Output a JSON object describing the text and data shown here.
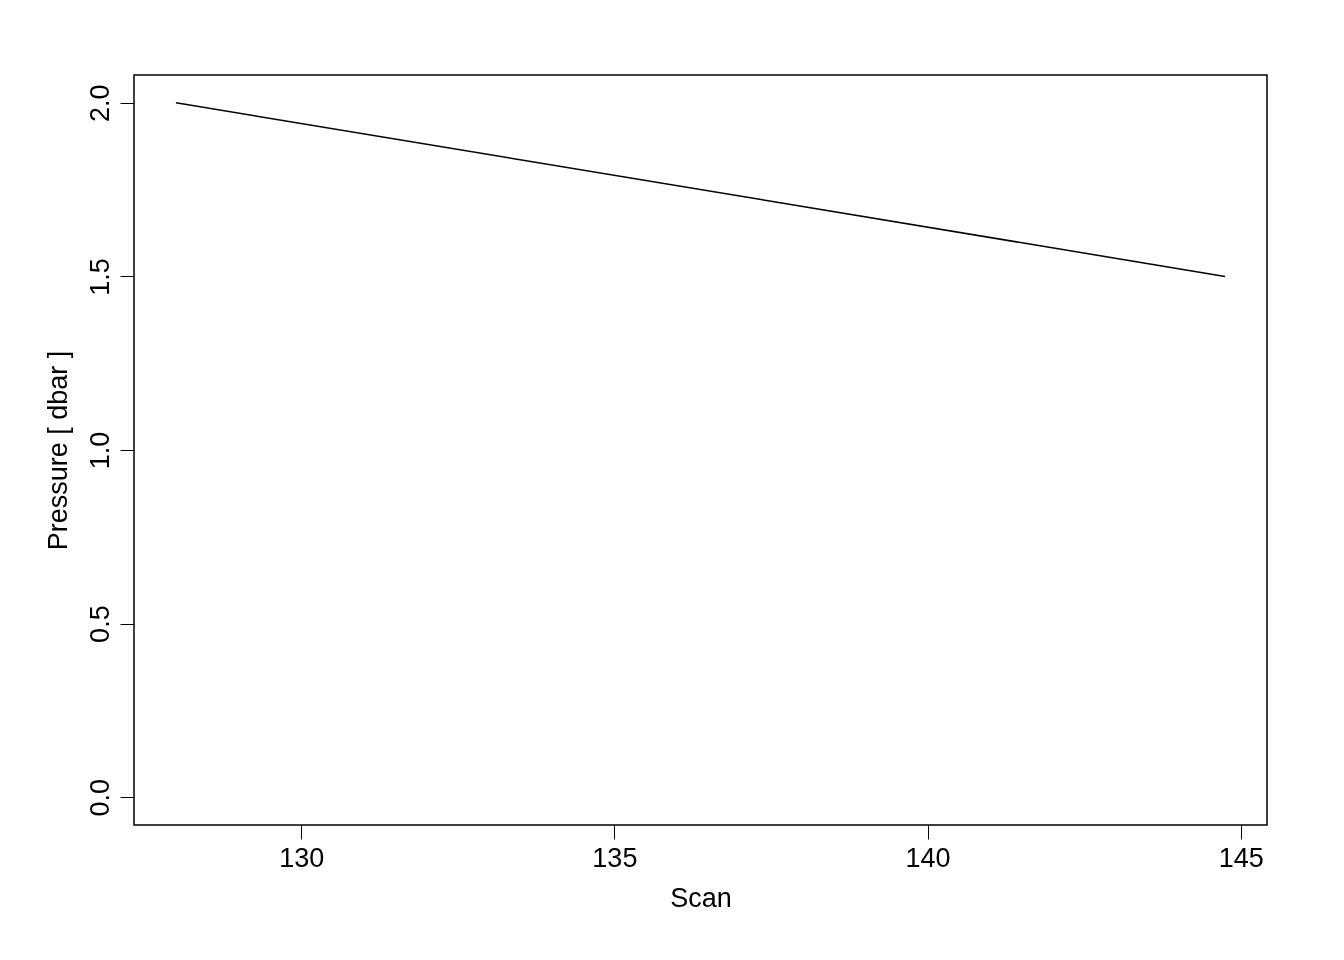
{
  "chart_data": {
    "type": "line",
    "xlabel": "Scan",
    "ylabel": "Pressure [ dbar ]",
    "x": [
      128,
      144.75
    ],
    "series": [
      {
        "color": "#000000",
        "values": [
          2.0,
          1.5
        ]
      }
    ],
    "xlim": [
      127.33,
      145.42
    ],
    "xticks": [
      130,
      135,
      140,
      145
    ],
    "ylim": [
      -0.08,
      2.08
    ],
    "yticks": [
      {
        "value": 0,
        "label": "0.0"
      },
      0.5,
      {
        "value": 1,
        "label": "1.0"
      },
      1.5,
      {
        "value": 2,
        "label": "2.0"
      }
    ],
    "grid": false,
    "marker": "none",
    "line_style": "solid"
  }
}
